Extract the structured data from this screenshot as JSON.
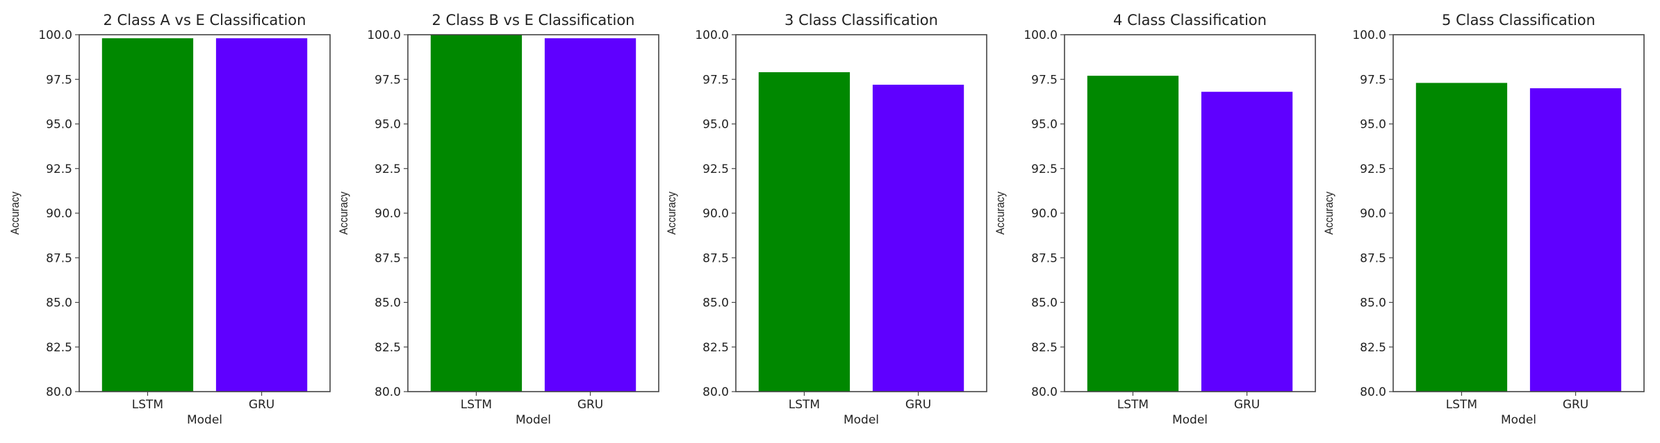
{
  "figure": {
    "background": "#ffffff"
  },
  "colors": {
    "LSTM": "#008800",
    "GRU": "#5f00ff",
    "axis": "#444444",
    "text": "#222222"
  },
  "chart_data": [
    {
      "type": "bar",
      "title": "2 Class A vs E Classification",
      "xlabel": "Model",
      "ylabel": "Accuracy",
      "categories": [
        "LSTM",
        "GRU"
      ],
      "values": [
        99.8,
        99.8
      ],
      "colors": [
        "#008800",
        "#5f00ff"
      ],
      "ylim": [
        80,
        100
      ],
      "yticks": [
        "80.0",
        "82.5",
        "85.0",
        "87.5",
        "90.0",
        "92.5",
        "95.0",
        "97.5",
        "100.0"
      ],
      "grid": false,
      "legend": null
    },
    {
      "type": "bar",
      "title": "2 Class B vs E Classification",
      "xlabel": "Model",
      "ylabel": "Accuracy",
      "categories": [
        "LSTM",
        "GRU"
      ],
      "values": [
        100.0,
        99.8
      ],
      "colors": [
        "#008800",
        "#5f00ff"
      ],
      "ylim": [
        80,
        100
      ],
      "yticks": [
        "80.0",
        "82.5",
        "85.0",
        "87.5",
        "90.0",
        "92.5",
        "95.0",
        "97.5",
        "100.0"
      ],
      "grid": false,
      "legend": null
    },
    {
      "type": "bar",
      "title": "3 Class Classification",
      "xlabel": "Model",
      "ylabel": "Accuracy",
      "categories": [
        "LSTM",
        "GRU"
      ],
      "values": [
        97.9,
        97.2
      ],
      "colors": [
        "#008800",
        "#5f00ff"
      ],
      "ylim": [
        80,
        100
      ],
      "yticks": [
        "80.0",
        "82.5",
        "85.0",
        "87.5",
        "90.0",
        "92.5",
        "95.0",
        "97.5",
        "100.0"
      ],
      "grid": false,
      "legend": null
    },
    {
      "type": "bar",
      "title": "4 Class Classification",
      "xlabel": "Model",
      "ylabel": "Accuracy",
      "categories": [
        "LSTM",
        "GRU"
      ],
      "values": [
        97.7,
        96.8
      ],
      "colors": [
        "#008800",
        "#5f00ff"
      ],
      "ylim": [
        80,
        100
      ],
      "yticks": [
        "80.0",
        "82.5",
        "85.0",
        "87.5",
        "90.0",
        "92.5",
        "95.0",
        "97.5",
        "100.0"
      ],
      "grid": false,
      "legend": null
    },
    {
      "type": "bar",
      "title": "5 Class Classification",
      "xlabel": "Model",
      "ylabel": "Accuracy",
      "categories": [
        "LSTM",
        "GRU"
      ],
      "values": [
        97.3,
        97.0
      ],
      "colors": [
        "#008800",
        "#5f00ff"
      ],
      "ylim": [
        80,
        100
      ],
      "yticks": [
        "80.0",
        "82.5",
        "85.0",
        "87.5",
        "90.0",
        "92.5",
        "95.0",
        "97.5",
        "100.0"
      ],
      "grid": false,
      "legend": null
    }
  ]
}
